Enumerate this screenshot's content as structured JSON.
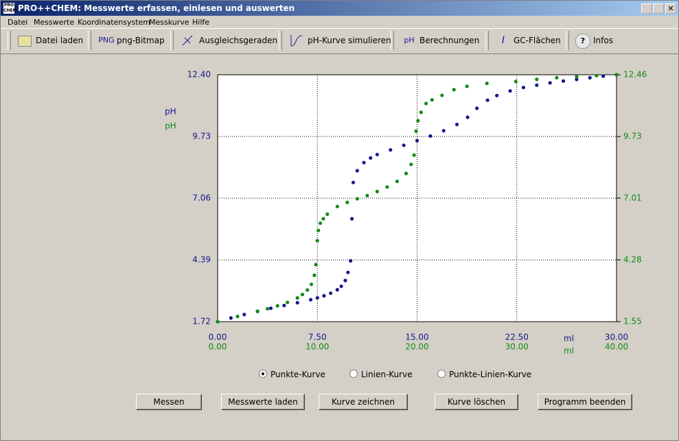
{
  "window": {
    "title": "PRO++CHEM: Messwerte erfassen, einlesen und auswerten"
  },
  "menu": [
    "Datei",
    "Messwerte",
    "Koordinatensystem",
    "Messkurve",
    "Hilfe"
  ],
  "toolbar": [
    {
      "label": "Datei laden"
    },
    {
      "icon": "PNG",
      "label": "png-Bitmap"
    },
    {
      "label": "Ausgleichsgeraden"
    },
    {
      "label": "pH-Kurve simulieren"
    },
    {
      "icon": "pH",
      "label": "Berechnungen"
    },
    {
      "icon": "I",
      "label": "GC-Flächen"
    },
    {
      "icon": "?",
      "label": "Infos"
    }
  ],
  "chart_data": {
    "type": "scatter",
    "y_label": "pH",
    "y2_label": "pH",
    "x_label": "ml",
    "x2_label": "ml",
    "xlim": [
      0,
      30
    ],
    "xticks": [
      {
        "value": 0,
        "label": "0.00"
      },
      {
        "value": 7.5,
        "label": "7.50"
      },
      {
        "value": 15,
        "label": "15.00"
      },
      {
        "value": 22.5,
        "label": "22.50"
      },
      {
        "value": 30,
        "label": "30.00"
      }
    ],
    "x2lim": [
      0,
      40
    ],
    "x2ticks": [
      {
        "value": 0,
        "label": "0.00"
      },
      {
        "value": 10,
        "label": "10.00"
      },
      {
        "value": 20,
        "label": "20.00"
      },
      {
        "value": 30,
        "label": "30.00"
      },
      {
        "value": 40,
        "label": "40.00"
      }
    ],
    "ylim": [
      1.72,
      12.4
    ],
    "yticks": [
      1.72,
      4.39,
      7.06,
      9.73,
      {
        "value": 12.4,
        "label": "12.40"
      }
    ],
    "y2lim": [
      1.55,
      12.46
    ],
    "y2ticks": [
      1.55,
      4.28,
      7.01,
      9.73,
      12.46
    ],
    "grid": true,
    "series": [
      {
        "color": "#16168c",
        "x": [
          0,
          1,
          2,
          3,
          4,
          5,
          6,
          7,
          7.5,
          8,
          8.5,
          9,
          9.3,
          9.6,
          9.8,
          10.0,
          10.1,
          10.2,
          10.5,
          11,
          11.5,
          12,
          13,
          14,
          15,
          16,
          17,
          18,
          18.8,
          19.5,
          20.3,
          21,
          22,
          23,
          24,
          25,
          26,
          27,
          28,
          29,
          30
        ],
        "values": [
          1.72,
          1.88,
          2.03,
          2.17,
          2.3,
          2.42,
          2.54,
          2.67,
          2.75,
          2.84,
          2.95,
          3.1,
          3.25,
          3.5,
          3.85,
          4.35,
          6.17,
          7.74,
          8.25,
          8.6,
          8.8,
          8.95,
          9.15,
          9.35,
          9.55,
          9.75,
          9.98,
          10.25,
          10.56,
          10.95,
          11.3,
          11.5,
          11.7,
          11.85,
          11.95,
          12.05,
          12.13,
          12.2,
          12.27,
          12.34,
          12.4
        ]
      },
      {
        "color": "#138a13",
        "axis": "y2",
        "x_axis": "x2",
        "x": [
          0,
          2,
          4,
          5,
          6,
          7,
          8,
          8.5,
          9,
          9.4,
          9.7,
          9.85,
          10.0,
          10.1,
          10.3,
          10.6,
          11,
          12,
          13,
          14,
          15,
          16,
          17,
          18,
          18.9,
          19.4,
          19.7,
          19.9,
          20.1,
          20.4,
          20.9,
          21.5,
          22.5,
          23.7,
          25,
          27,
          29.9,
          32,
          34,
          36,
          38,
          40
        ],
        "values": [
          1.55,
          1.78,
          2.0,
          2.12,
          2.25,
          2.4,
          2.6,
          2.75,
          2.95,
          3.2,
          3.6,
          4.07,
          5.13,
          5.58,
          5.9,
          6.1,
          6.3,
          6.64,
          6.82,
          6.98,
          7.12,
          7.3,
          7.5,
          7.75,
          8.1,
          8.5,
          8.91,
          9.97,
          10.43,
          10.8,
          11.19,
          11.35,
          11.55,
          11.8,
          11.95,
          12.08,
          12.16,
          12.26,
          12.33,
          12.38,
          12.42,
          12.46
        ]
      }
    ]
  },
  "plot_modes": {
    "options": [
      "Punkte-Kurve",
      "Linien-Kurve",
      "Punkte-Linien-Kurve"
    ],
    "selected": 0
  },
  "buttons": [
    "Messen",
    "Messwerte laden",
    "Kurve zeichnen",
    "Kurve löschen",
    "Programm beenden"
  ]
}
